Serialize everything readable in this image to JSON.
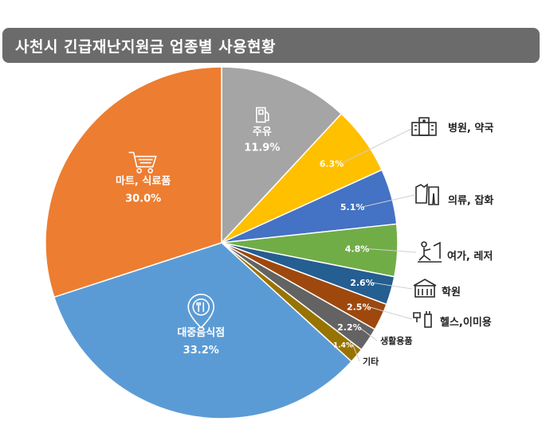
{
  "title": "사천시 긴급재난지원금 업종별 사용현황",
  "chart_data": {
    "type": "pie",
    "title": "사천시 긴급재난지원금 업종별 사용현황",
    "slices": [
      {
        "name": "주유",
        "value": 11.9,
        "value_label": "11.9%",
        "color": "#a5a5a5"
      },
      {
        "name": "병원, 약국",
        "value": 6.3,
        "value_label": "6.3%",
        "color": "#ffc000"
      },
      {
        "name": "의류, 잡화",
        "value": 5.1,
        "value_label": "5.1%",
        "color": "#4472c4"
      },
      {
        "name": "여가, 레저",
        "value": 4.8,
        "value_label": "4.8%",
        "color": "#70ad47"
      },
      {
        "name": "학원",
        "value": 2.6,
        "value_label": "2.6%",
        "color": "#255e91"
      },
      {
        "name": "헬스,이미용",
        "value": 2.5,
        "value_label": "2.5%",
        "color": "#9e480e"
      },
      {
        "name": "생활용품",
        "value": 2.2,
        "value_label": "2.2%",
        "color": "#636363"
      },
      {
        "name": "기타",
        "value": 1.4,
        "value_label": "1.4%",
        "color": "#997300"
      },
      {
        "name": "대중음식점",
        "value": 33.2,
        "value_label": "33.2%",
        "color": "#5b9bd5"
      },
      {
        "name": "마트, 식료품",
        "value": 30.0,
        "value_label": "30.0%",
        "color": "#ed7d31"
      }
    ],
    "start": "12 o'clock",
    "direction": "clockwise"
  }
}
